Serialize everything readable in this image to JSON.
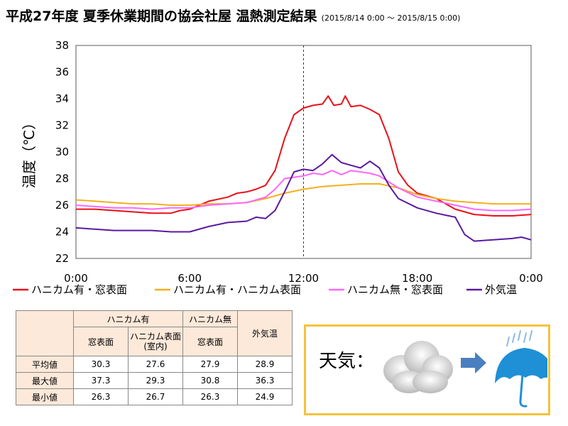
{
  "title": "平成27年度 夏季休業期間の協会社屋 温熱測定結果",
  "date_range": "(2015/8/14 0:00 ～ 2015/8/15 0:00)",
  "chart_data": {
    "type": "line",
    "ylabel": "温度（℃）",
    "ylim": [
      22,
      38
    ],
    "yticks": [
      "22",
      "24",
      "26",
      "28",
      "30",
      "32",
      "34",
      "36",
      "38"
    ],
    "xlim": [
      0,
      24
    ],
    "xticks": [
      {
        "x": 0,
        "label": "0:00"
      },
      {
        "x": 6,
        "label": "6:00"
      },
      {
        "x": 12,
        "label": "12:00"
      },
      {
        "x": 18,
        "label": "18:00"
      },
      {
        "x": 24,
        "label": "0:00"
      }
    ],
    "x_unit": "hour",
    "reference_lines_x": [
      12,
      24
    ],
    "series": [
      {
        "name": "ハニカム有・窓表面",
        "color": "#e8111b",
        "points": [
          [
            0,
            25.7
          ],
          [
            1,
            25.7
          ],
          [
            2,
            25.6
          ],
          [
            3,
            25.5
          ],
          [
            4,
            25.4
          ],
          [
            5,
            25.4
          ],
          [
            5.5,
            25.6
          ],
          [
            6,
            25.7
          ],
          [
            7,
            26.3
          ],
          [
            8,
            26.6
          ],
          [
            8.5,
            26.9
          ],
          [
            9,
            27.0
          ],
          [
            9.5,
            27.2
          ],
          [
            10,
            27.5
          ],
          [
            10.5,
            28.6
          ],
          [
            11,
            31.0
          ],
          [
            11.5,
            32.8
          ],
          [
            12,
            33.3
          ],
          [
            12.5,
            33.5
          ],
          [
            13,
            33.6
          ],
          [
            13.3,
            34.2
          ],
          [
            13.6,
            33.5
          ],
          [
            14,
            33.6
          ],
          [
            14.2,
            34.2
          ],
          [
            14.5,
            33.4
          ],
          [
            15,
            33.5
          ],
          [
            15.5,
            33.2
          ],
          [
            16,
            32.8
          ],
          [
            16.5,
            31.0
          ],
          [
            17,
            28.5
          ],
          [
            17.5,
            27.5
          ],
          [
            18,
            26.9
          ],
          [
            19,
            26.5
          ],
          [
            20,
            25.7
          ],
          [
            21,
            25.3
          ],
          [
            22,
            25.2
          ],
          [
            23,
            25.2
          ],
          [
            24,
            25.3
          ]
        ]
      },
      {
        "name": "ハニカム有・ハニカム表面",
        "color": "#f2b01e",
        "points": [
          [
            0,
            26.4
          ],
          [
            1,
            26.3
          ],
          [
            2,
            26.2
          ],
          [
            3,
            26.1
          ],
          [
            4,
            26.1
          ],
          [
            5,
            26.0
          ],
          [
            6,
            26.0
          ],
          [
            7,
            26.1
          ],
          [
            8,
            26.1
          ],
          [
            9,
            26.2
          ],
          [
            10,
            26.5
          ],
          [
            11,
            26.9
          ],
          [
            12,
            27.2
          ],
          [
            13,
            27.4
          ],
          [
            14,
            27.5
          ],
          [
            15,
            27.6
          ],
          [
            16,
            27.6
          ],
          [
            17,
            27.3
          ],
          [
            18,
            26.8
          ],
          [
            19,
            26.5
          ],
          [
            20,
            26.3
          ],
          [
            21,
            26.2
          ],
          [
            22,
            26.1
          ],
          [
            23,
            26.1
          ],
          [
            24,
            26.1
          ]
        ]
      },
      {
        "name": "ハニカム無・窓表面",
        "color": "#ff66ff",
        "points": [
          [
            0,
            26.0
          ],
          [
            1,
            25.9
          ],
          [
            2,
            25.8
          ],
          [
            3,
            25.8
          ],
          [
            4,
            25.7
          ],
          [
            5,
            25.8
          ],
          [
            6,
            25.8
          ],
          [
            7,
            26.0
          ],
          [
            8,
            26.1
          ],
          [
            9,
            26.2
          ],
          [
            10,
            26.6
          ],
          [
            10.5,
            27.2
          ],
          [
            11,
            28.0
          ],
          [
            12,
            28.2
          ],
          [
            12.5,
            28.4
          ],
          [
            13,
            28.3
          ],
          [
            13.5,
            28.6
          ],
          [
            14,
            28.3
          ],
          [
            14.5,
            28.6
          ],
          [
            15,
            28.5
          ],
          [
            15.5,
            28.4
          ],
          [
            16,
            28.2
          ],
          [
            17,
            27.3
          ],
          [
            18,
            26.6
          ],
          [
            19,
            26.3
          ],
          [
            20,
            26.0
          ],
          [
            21,
            25.7
          ],
          [
            22,
            25.6
          ],
          [
            23,
            25.6
          ],
          [
            24,
            25.7
          ]
        ]
      },
      {
        "name": "外気温",
        "color": "#5a1aa0",
        "points": [
          [
            0,
            24.3
          ],
          [
            1,
            24.2
          ],
          [
            2,
            24.1
          ],
          [
            3,
            24.1
          ],
          [
            4,
            24.1
          ],
          [
            5,
            24.0
          ],
          [
            6,
            24.0
          ],
          [
            7,
            24.4
          ],
          [
            8,
            24.7
          ],
          [
            9,
            24.8
          ],
          [
            9.5,
            25.1
          ],
          [
            10,
            25.0
          ],
          [
            10.5,
            25.6
          ],
          [
            11,
            27.0
          ],
          [
            11.5,
            28.5
          ],
          [
            12,
            28.7
          ],
          [
            12.5,
            28.6
          ],
          [
            13,
            29.1
          ],
          [
            13.5,
            29.8
          ],
          [
            14,
            29.2
          ],
          [
            14.5,
            29.0
          ],
          [
            15,
            28.8
          ],
          [
            15.5,
            29.3
          ],
          [
            16,
            28.8
          ],
          [
            16.5,
            27.5
          ],
          [
            17,
            26.5
          ],
          [
            18,
            25.8
          ],
          [
            19,
            25.4
          ],
          [
            20,
            25.1
          ],
          [
            20.5,
            23.8
          ],
          [
            21,
            23.3
          ],
          [
            22,
            23.4
          ],
          [
            23,
            23.5
          ],
          [
            23.5,
            23.6
          ],
          [
            24,
            23.4
          ]
        ]
      }
    ]
  },
  "table": {
    "group_honeycomb_yes": "ハニカム有",
    "group_honeycomb_no": "ハニカム無",
    "col_window": "窓表面",
    "col_honeycomb_surface": "ハニカム表面",
    "col_honeycomb_surface_sub": "(室内)",
    "col_window2": "窓表面",
    "col_outdoor": "外気温",
    "rows": [
      {
        "label": "平均値",
        "values": [
          "30.3",
          "27.6",
          "27.9",
          "28.9"
        ]
      },
      {
        "label": "最大値",
        "values": [
          "37.3",
          "29.3",
          "30.8",
          "36.3"
        ]
      },
      {
        "label": "最小値",
        "values": [
          "26.3",
          "26.7",
          "26.3",
          "24.9"
        ]
      }
    ]
  },
  "weather": {
    "label": "天気：",
    "from_icon": "cloud-icon",
    "arrow_icon": "arrow-right-icon",
    "to_icon": "umbrella-rain-icon",
    "arrow_color": "#4a7fc0",
    "umbrella_color": "#1f8fd6"
  }
}
